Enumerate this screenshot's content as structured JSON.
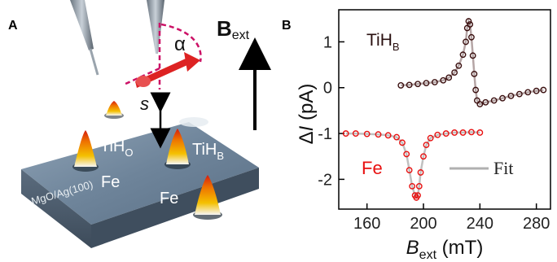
{
  "panels": {
    "a": {
      "label": "A"
    },
    "b": {
      "label": "B"
    }
  },
  "schematic": {
    "field_label": "B",
    "field_subscript": "ext",
    "angle_label": "α",
    "distance_label": "s",
    "atoms": [
      {
        "name": "TiH",
        "subscript": "O"
      },
      {
        "name": "TiH",
        "subscript": "B"
      },
      {
        "name": "Fe",
        "subscript": ""
      },
      {
        "name": "Fe",
        "subscript": ""
      }
    ],
    "substrate_label": "MgO/Ag(100)",
    "colors": {
      "surface": "#7e93a8",
      "atom_hot": "#e03010",
      "atom_mid": "#f0a000",
      "tip_arrow": "#dd2222",
      "cone": "#cc1166"
    }
  },
  "chart_data": {
    "type": "scatter",
    "xlabel_main": "B",
    "xlabel_sub": "ext",
    "xlabel_unit": " (mT)",
    "ylabel_prefix": "Δ",
    "ylabel_var": "I",
    "ylabel_unit": " (pA)",
    "xlim": [
      140,
      290
    ],
    "ylim": [
      -2.65,
      1.7
    ],
    "xticks": [
      160,
      200,
      240,
      280
    ],
    "yticks": [
      -2,
      -1,
      0,
      1
    ],
    "grid": false,
    "legend": {
      "placement": "bottom-right",
      "label": "Fit",
      "color": "#b0b0b0"
    },
    "series": [
      {
        "name": "TiH",
        "name_sub": "B",
        "color": "#3a0f0f",
        "fit_color": "#b5a5a5",
        "x": [
          184,
          190,
          196,
          202,
          208,
          214,
          218,
          222,
          225,
          228,
          230,
          231,
          232,
          233,
          234,
          235,
          236,
          237,
          238,
          240,
          244,
          250,
          256,
          262,
          268,
          274,
          280,
          285
        ],
        "y": [
          0.05,
          0.06,
          0.08,
          0.1,
          0.12,
          0.16,
          0.22,
          0.33,
          0.48,
          0.72,
          1.0,
          1.3,
          1.45,
          1.38,
          1.1,
          0.7,
          0.3,
          -0.05,
          -0.28,
          -0.36,
          -0.32,
          -0.28,
          -0.23,
          -0.18,
          -0.14,
          -0.1,
          -0.07,
          -0.05
        ]
      },
      {
        "name": "Fe",
        "name_sub": "",
        "color": "#e81010",
        "fit_color": "#c0c0c0",
        "x": [
          145,
          152,
          160,
          168,
          175,
          181,
          185,
          188,
          190,
          192,
          194,
          195,
          196,
          197,
          198,
          200,
          202,
          205,
          210,
          216,
          222,
          228,
          234,
          240
        ],
        "y": [
          -1.0,
          -1.0,
          -1.01,
          -1.02,
          -1.04,
          -1.08,
          -1.2,
          -1.45,
          -1.8,
          -2.15,
          -2.35,
          -2.4,
          -2.35,
          -2.15,
          -1.85,
          -1.5,
          -1.25,
          -1.1,
          -1.03,
          -1.0,
          -0.98,
          -0.98,
          -0.97,
          -0.98
        ]
      }
    ]
  }
}
